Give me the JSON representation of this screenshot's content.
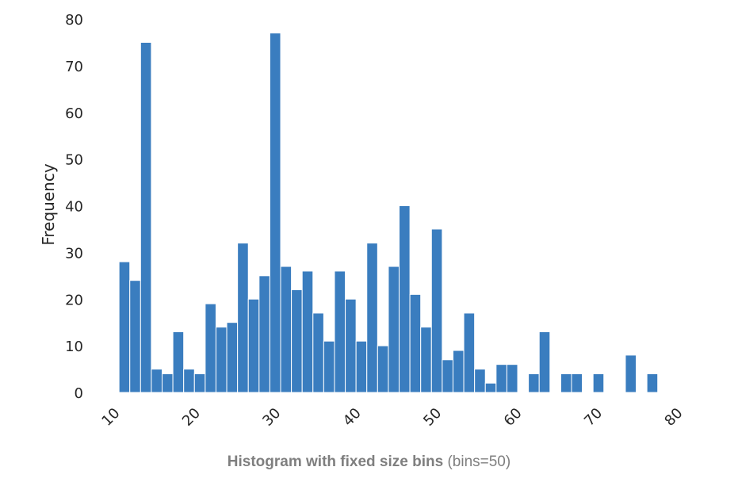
{
  "chart_data": {
    "type": "bar",
    "bin_edges": [
      11,
      12.34,
      13.68,
      15.02,
      16.36,
      17.7,
      19.04,
      20.38,
      21.72,
      23.06,
      24.4,
      25.74,
      27.08,
      28.42,
      29.76,
      31.1,
      32.44,
      33.78,
      35.12,
      36.46,
      37.8,
      39.14,
      40.48,
      41.82,
      43.16,
      44.5,
      45.84,
      47.18,
      48.52,
      49.86,
      51.2,
      52.54,
      53.88,
      55.22,
      56.56,
      57.9,
      59.24,
      60.58,
      61.92,
      63.26,
      64.6,
      65.94,
      67.28,
      68.62,
      69.96,
      71.3,
      72.64,
      73.98,
      75.32,
      76.66,
      78
    ],
    "values": [
      28,
      24,
      75,
      5,
      4,
      13,
      5,
      4,
      19,
      14,
      15,
      32,
      20,
      25,
      77,
      27,
      22,
      26,
      17,
      11,
      26,
      20,
      11,
      32,
      10,
      27,
      40,
      21,
      14,
      35,
      7,
      9,
      17,
      5,
      2,
      6,
      6,
      0,
      4,
      13,
      0,
      4,
      4,
      0,
      4,
      0,
      0,
      8,
      0,
      4
    ],
    "xlim": [
      10,
      80
    ],
    "ylim": [
      0,
      80
    ],
    "xticks": [
      10,
      20,
      30,
      40,
      50,
      60,
      70,
      80
    ],
    "yticks": [
      0,
      10,
      20,
      30,
      40,
      50,
      60,
      70,
      80
    ],
    "xlabel": "",
    "ylabel": "Frequency",
    "title_bold": "Histogram with fixed size bins",
    "title_normal": "(bins=50)",
    "bar_color": "#3a7dbf",
    "grid": false
  }
}
